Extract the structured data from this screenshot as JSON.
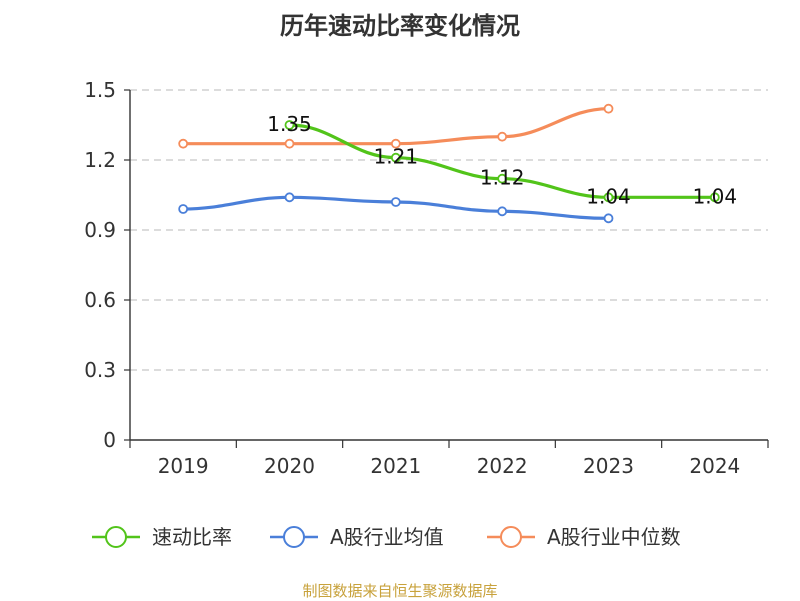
{
  "chart_data": {
    "type": "line",
    "title": "历年速动比率变化情况",
    "categories": [
      "2019",
      "2020",
      "2021",
      "2022",
      "2023",
      "2024"
    ],
    "ylim": [
      0,
      1.5
    ],
    "yticks": [
      "0",
      "0.3",
      "0.6",
      "0.9",
      "1.2",
      "1.5"
    ],
    "grid": true,
    "legend_position": "bottom",
    "series": [
      {
        "name": "速动比率",
        "color": "#52c41a",
        "values": [
          null,
          1.35,
          1.21,
          1.12,
          1.04,
          1.04
        ],
        "labels": [
          null,
          "1.35",
          "1.21",
          "1.12",
          "1.04",
          "1.04"
        ]
      },
      {
        "name": "A股行业均值",
        "color": "#4a7fd9",
        "values": [
          0.99,
          1.04,
          1.02,
          0.98,
          0.95,
          null
        ]
      },
      {
        "name": "A股行业中位数",
        "color": "#f58c5a",
        "values": [
          1.27,
          1.27,
          1.27,
          1.3,
          1.42,
          null
        ]
      }
    ]
  },
  "source_text": "制图数据来自恒生聚源数据库"
}
